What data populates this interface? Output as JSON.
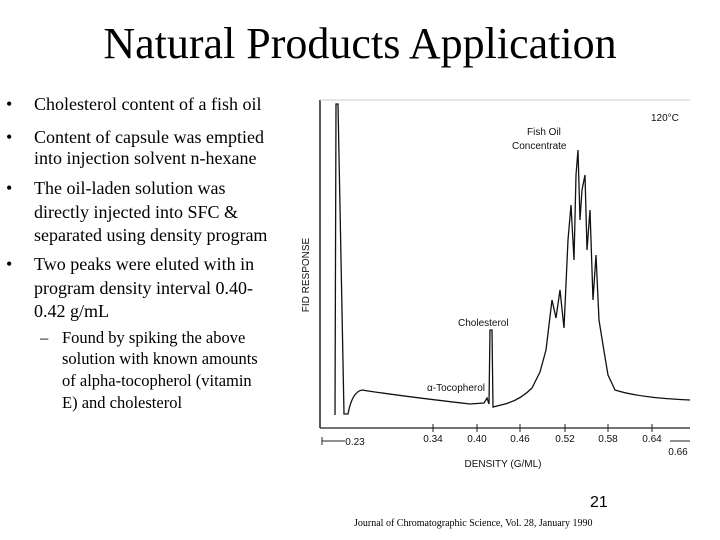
{
  "title": "Natural Products Application",
  "bullets": [
    {
      "lines": [
        "Cholesterol content of a fish oil"
      ]
    },
    {
      "lines": [
        "Content of capsule was emptied",
        "into injection solvent n-hexane"
      ]
    },
    {
      "lines": [
        "The oil-laden solution was",
        "directly injected into SFC &",
        "separated using density program"
      ]
    },
    {
      "lines": [
        "Two peaks were eluted with in",
        "program density interval 0.40-",
        "0.42 g/mL"
      ],
      "sub": [
        {
          "lines": [
            "Found by spiking the above",
            "solution with known amounts",
            "of alpha-tocopherol (vitamin",
            "E) and cholesterol"
          ]
        }
      ]
    }
  ],
  "figure": {
    "temperature": "120°C",
    "peak_main": [
      "Fish Oil",
      "Concentrate"
    ],
    "peak_cholesterol": "Cholesterol",
    "peak_tocopherol": "α-Tocopherol",
    "y_label": "FID RESPONSE",
    "x_label": "DENSITY (G/ML)",
    "x_tick_labels": [
      "0.23",
      "0.34",
      "0.40",
      "0.46",
      "0.52",
      "0.58",
      "0.64",
      "0.66"
    ]
  },
  "page_number": "21",
  "citation": "Journal of Chromatographic Science, Vol. 28, January 1990"
}
